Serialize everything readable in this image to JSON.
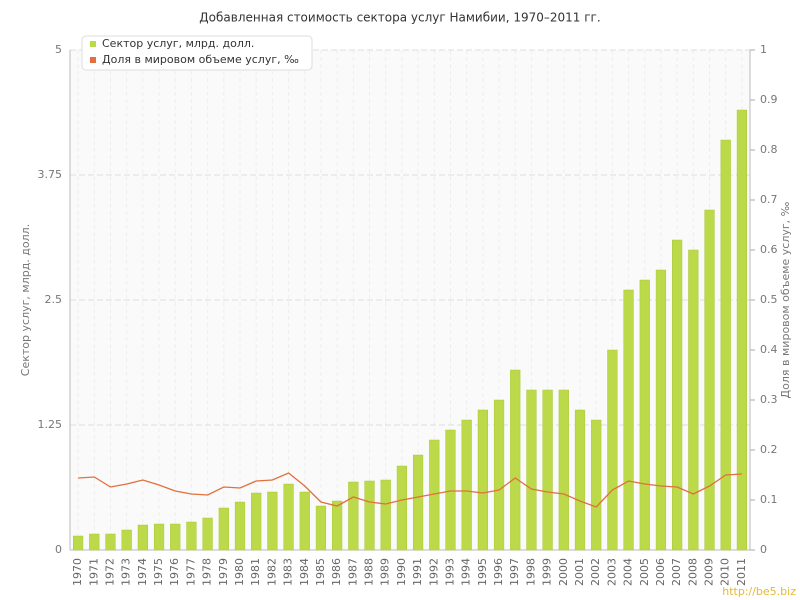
{
  "chart_data": {
    "type": "bar",
    "title": "Добавленная стоимость сектора услуг Намибии, 1970–2011 гг.",
    "ylabel": "Сектор услуг, млрд. долл.",
    "y2label": "Доля в мировом объеме услуг, ‰",
    "watermark": "http://be5.biz",
    "categories": [
      "1970",
      "1971",
      "1972",
      "1973",
      "1974",
      "1975",
      "1976",
      "1977",
      "1978",
      "1979",
      "1980",
      "1981",
      "1982",
      "1983",
      "1984",
      "1985",
      "1986",
      "1987",
      "1988",
      "1989",
      "1990",
      "1991",
      "1992",
      "1993",
      "1994",
      "1995",
      "1996",
      "1997",
      "1998",
      "1999",
      "2000",
      "2001",
      "2002",
      "2003",
      "2004",
      "2005",
      "2006",
      "2007",
      "2008",
      "2009",
      "2010",
      "2011"
    ],
    "series": [
      {
        "name": "Сектор услуг, млрд. долл.",
        "type": "bar",
        "color": "#bcd94a",
        "values": [
          0.14,
          0.16,
          0.16,
          0.2,
          0.25,
          0.26,
          0.26,
          0.28,
          0.32,
          0.42,
          0.48,
          0.57,
          0.58,
          0.66,
          0.58,
          0.44,
          0.49,
          0.68,
          0.69,
          0.7,
          0.84,
          0.95,
          1.1,
          1.2,
          1.3,
          1.4,
          1.5,
          1.8,
          1.6,
          1.6,
          1.6,
          1.4,
          1.3,
          2.0,
          2.6,
          2.7,
          2.8,
          3.1,
          3.0,
          3.4,
          4.1,
          4.4
        ]
      },
      {
        "name": "Доля в мировом объеме услуг, ‰",
        "type": "line",
        "axis": "y2",
        "color": "#e0703c",
        "values": [
          0.144,
          0.146,
          0.126,
          0.132,
          0.14,
          0.13,
          0.118,
          0.112,
          0.11,
          0.126,
          0.124,
          0.138,
          0.14,
          0.154,
          0.128,
          0.096,
          0.088,
          0.106,
          0.096,
          0.092,
          0.1,
          0.106,
          0.112,
          0.118,
          0.118,
          0.114,
          0.12,
          0.144,
          0.122,
          0.116,
          0.112,
          0.098,
          0.086,
          0.12,
          0.138,
          0.132,
          0.128,
          0.126,
          0.112,
          0.128,
          0.15,
          0.152
        ]
      }
    ],
    "ylim": [
      0,
      5
    ],
    "yticks": [
      0,
      1.25,
      2.5,
      3.75,
      5
    ],
    "y2lim": [
      0,
      1
    ],
    "y2ticks": [
      0,
      0.1,
      0.2,
      0.3,
      0.4,
      0.5,
      0.6,
      0.7,
      0.8,
      0.9,
      1
    ],
    "grid": true,
    "legend": "top-left"
  }
}
